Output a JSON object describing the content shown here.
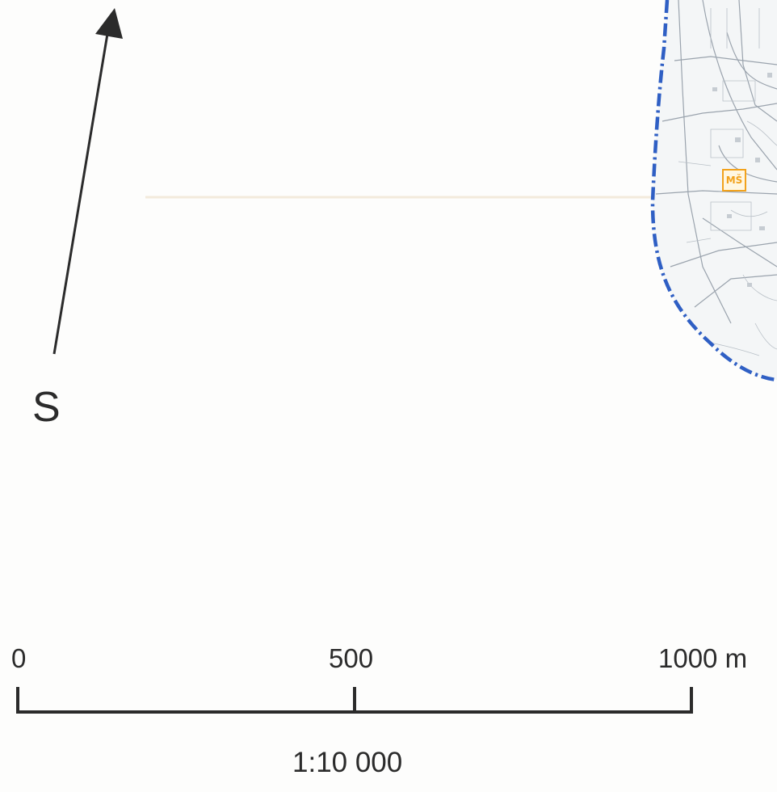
{
  "north_arrow": {
    "letter": "S",
    "icon": "north-arrow-icon"
  },
  "scale_bar": {
    "ticks": [
      "0",
      "500",
      "1000 m"
    ],
    "ratio": "1:10 000"
  },
  "map": {
    "boundary_color": "#2f5fc4",
    "feature_label": "MŠ",
    "feature_color": "#f2a21c"
  }
}
